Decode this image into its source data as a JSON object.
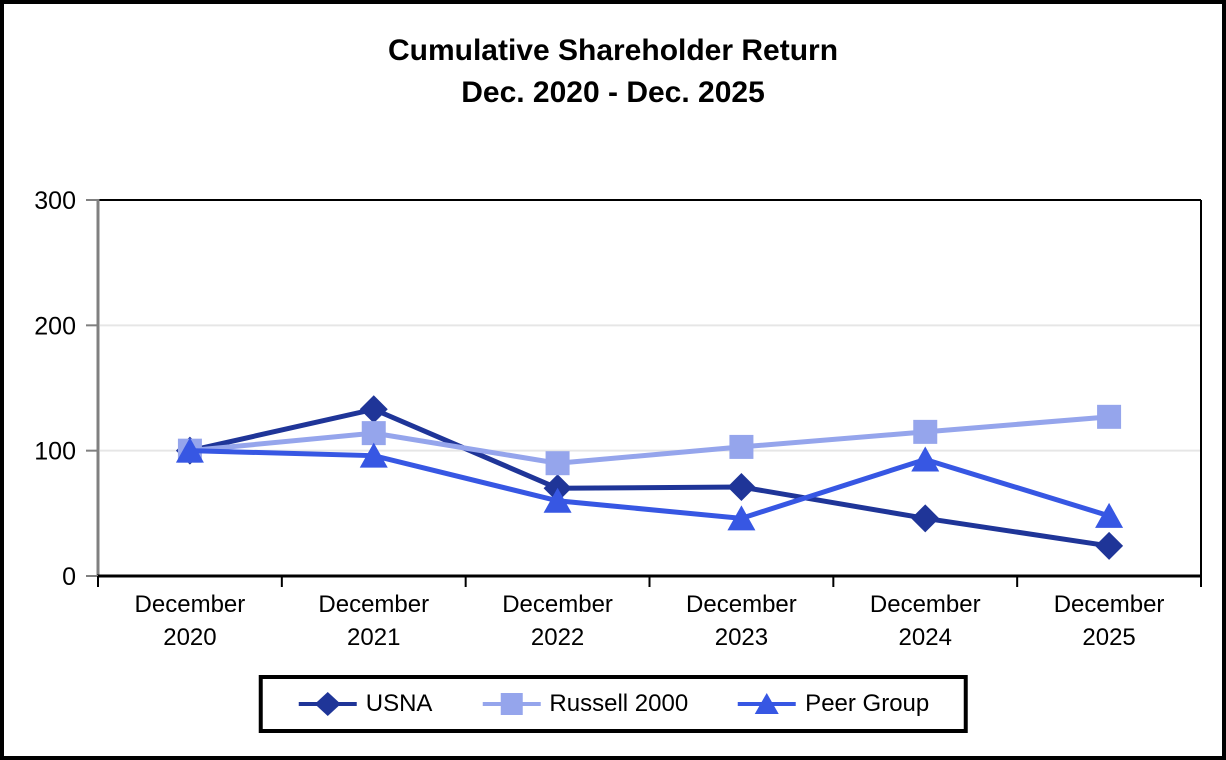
{
  "title": {
    "line1": "Cumulative Shareholder Return",
    "line2": "Dec. 2020 - Dec. 2025"
  },
  "chart_data": {
    "type": "line",
    "title": "Cumulative Shareholder Return Dec. 2020 - Dec. 2025",
    "x_categories": [
      [
        "December",
        "2020"
      ],
      [
        "December",
        "2021"
      ],
      [
        "December",
        "2022"
      ],
      [
        "December",
        "2023"
      ],
      [
        "December",
        "2024"
      ],
      [
        "December",
        "2025"
      ]
    ],
    "series": [
      {
        "name": "USNA",
        "marker": "diamond",
        "color": "#1F3598",
        "values": [
          100,
          133,
          70,
          71,
          46,
          24
        ]
      },
      {
        "name": "Russell 2000",
        "marker": "square",
        "color": "#95A5EC",
        "values": [
          100,
          114,
          90,
          103,
          115,
          127
        ]
      },
      {
        "name": "Peer Group",
        "marker": "triangle",
        "color": "#3757E3",
        "values": [
          100,
          96,
          60,
          46,
          93,
          48
        ]
      }
    ],
    "y_ticks": [
      0,
      100,
      200,
      300
    ],
    "ylim": [
      0,
      300
    ],
    "xlabel": "",
    "ylabel": "",
    "grid": "horizontal-major",
    "legend_position": "bottom-center"
  },
  "colors": {
    "background": "#FFFFFF",
    "outer_border": "#000000",
    "plot_border": "#000000",
    "value_axis": "#808080",
    "gridline": "#E6E6E6",
    "text": "#000000"
  }
}
